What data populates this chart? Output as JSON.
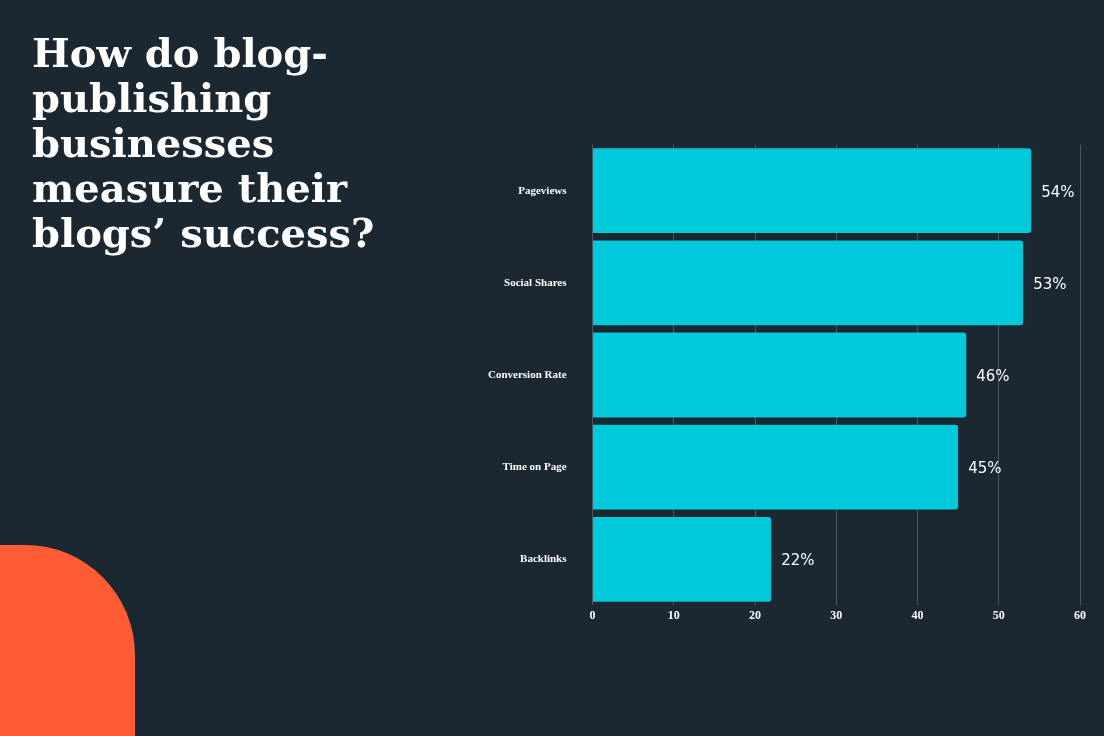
{
  "chart_data": {
    "type": "bar",
    "orientation": "horizontal",
    "title": "How do blog-publishing businesses measure their blogs’ success?",
    "categories": [
      "Pageviews",
      "Social Shares",
      "Conversion Rate",
      "Time on Page",
      "Backlinks"
    ],
    "values": [
      54,
      53,
      46,
      45,
      22
    ],
    "value_labels": [
      "54%",
      "53%",
      "46%",
      "45%",
      "22%"
    ],
    "color": "#00c9db",
    "xlim": [
      0,
      60
    ],
    "xticks": [
      0,
      10,
      20,
      30,
      40,
      50,
      60
    ],
    "grid": "x",
    "legend": false
  }
}
